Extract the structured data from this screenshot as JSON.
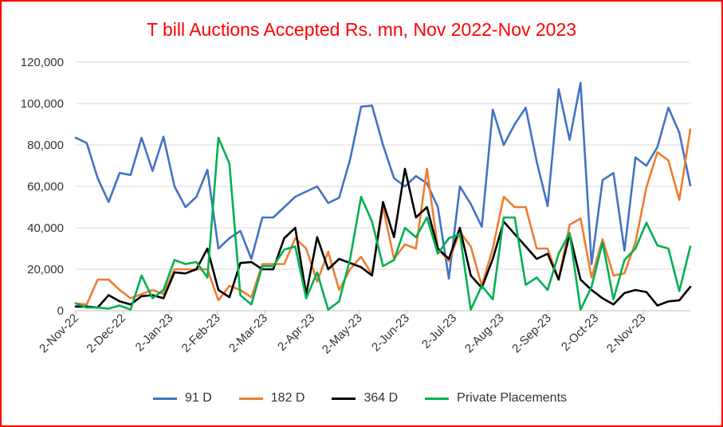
{
  "chart_data": {
    "type": "line",
    "title": "T bill Auctions Accepted Rs. mn, Nov 2022-Nov 2023",
    "xlabel": "",
    "ylabel": "",
    "ylim": [
      0,
      120000
    ],
    "yticks": [
      "0",
      "20,000",
      "40,000",
      "60,000",
      "80,000",
      "100,000",
      "120,000"
    ],
    "ytick_values": [
      0,
      20000,
      40000,
      60000,
      80000,
      100000,
      120000
    ],
    "x_tick_labels": [
      "2-Nov-22",
      "2-Dec-22",
      "2-Jan-23",
      "2-Feb-23",
      "2-Mar-23",
      "2-Apr-23",
      "2-May-23",
      "2-Jun-23",
      "2-Jul-23",
      "2-Aug-23",
      "2-Sep-23",
      "2-Oct-23",
      "2-Nov-23"
    ],
    "grid": "horizontal",
    "legend_position": "bottom",
    "series": [
      {
        "name": "91 D",
        "color": "#4472c4",
        "values": [
          83500,
          81000,
          64000,
          52500,
          66500,
          65500,
          83500,
          67500,
          84000,
          60000,
          50000,
          55000,
          68000,
          30000,
          35000,
          38500,
          25000,
          45000,
          45000,
          50000,
          55000,
          57500,
          60000,
          52000,
          54500,
          73000,
          98500,
          99000,
          80000,
          64000,
          60000,
          65000,
          61500,
          50000,
          15500,
          60000,
          51500,
          40500,
          97000,
          80000,
          90000,
          98000,
          72000,
          50500,
          107000,
          82500,
          110000,
          22500,
          63000,
          66500,
          29000,
          74000,
          70000,
          79000,
          98000,
          86000,
          60500
        ]
      },
      {
        "name": "182 D",
        "color": "#ed7d31",
        "values": [
          3500,
          3000,
          15000,
          15000,
          10000,
          6000,
          8000,
          10000,
          8000,
          20000,
          20000,
          20000,
          20000,
          5000,
          12000,
          10000,
          6500,
          22500,
          22500,
          22500,
          35000,
          30000,
          14000,
          28500,
          10000,
          20000,
          26000,
          17500,
          50000,
          25000,
          32000,
          30000,
          68500,
          30000,
          24000,
          38000,
          31000,
          12000,
          30000,
          55000,
          50000,
          50000,
          30000,
          30000,
          15000,
          41500,
          44500,
          16000,
          34500,
          17000,
          18000,
          33000,
          59500,
          76500,
          72500,
          53500,
          87500
        ]
      },
      {
        "name": "364 D",
        "color": "#000000",
        "values": [
          2000,
          2000,
          1500,
          7500,
          4500,
          3000,
          7000,
          7500,
          6000,
          18500,
          18000,
          20000,
          30000,
          10000,
          6500,
          23000,
          23500,
          20000,
          20000,
          35000,
          40000,
          8000,
          35500,
          20000,
          25000,
          23000,
          21000,
          17000,
          52500,
          35500,
          68500,
          45000,
          50000,
          30000,
          25000,
          40000,
          17000,
          11000,
          25000,
          43000,
          37000,
          31000,
          25000,
          27500,
          15000,
          37000,
          15000,
          10000,
          6000,
          3000,
          8500,
          10000,
          9000,
          2500,
          4500,
          5000,
          11500
        ]
      },
      {
        "name": "Private Placements",
        "color": "#00b050",
        "values": [
          3500,
          1500,
          1500,
          1000,
          2500,
          500,
          17000,
          6000,
          10000,
          24500,
          22500,
          23500,
          16000,
          83500,
          71000,
          7500,
          3000,
          21500,
          21500,
          29500,
          31000,
          6000,
          18500,
          500,
          4500,
          25000,
          55000,
          43000,
          21500,
          24500,
          40000,
          35500,
          45000,
          27500,
          35000,
          37000,
          500,
          12000,
          5500,
          45000,
          45000,
          12500,
          16000,
          10000,
          27500,
          37500,
          500,
          11500,
          33000,
          5500,
          24500,
          30000,
          42500,
          31500,
          30000,
          9500,
          31000
        ]
      }
    ]
  }
}
